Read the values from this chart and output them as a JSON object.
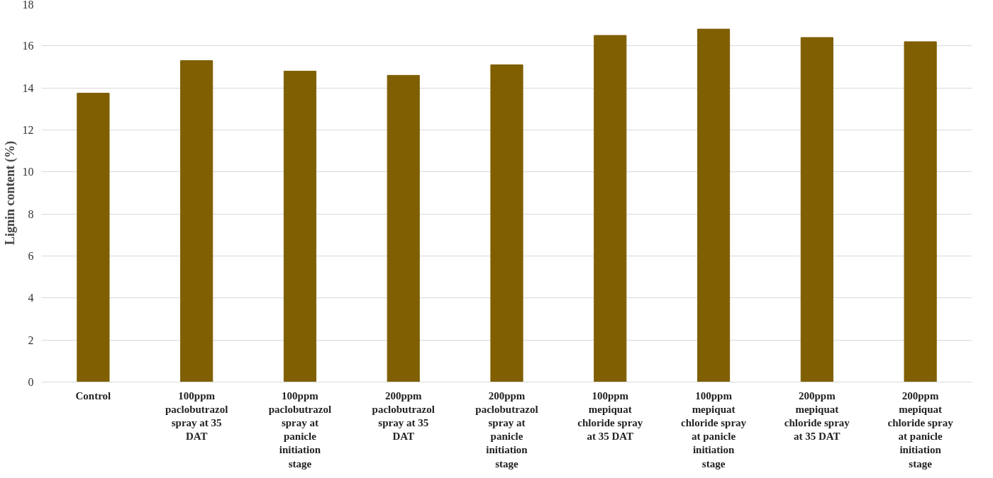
{
  "chart_data": {
    "type": "bar",
    "ylabel": "Lignin content (%)",
    "categories": [
      "Control",
      "100ppm paclobutrazol spray at 35 DAT",
      "100ppm paclobutrazol spray at panicle initiation stage",
      "200ppm paclobutrazol spray at 35 DAT",
      "200ppm paclobutrazol spray at panicle initiation stage",
      "100ppm mepiquat chloride spray at 35 DAT",
      "100ppm mepiquat chloride spray at panicle initiation stage",
      "200ppm mepiquat chloride spray at 35 DAT",
      "200ppm mepiquat chloride spray at panicle initiation stage"
    ],
    "values": [
      13.75,
      15.3,
      14.8,
      14.6,
      15.1,
      16.5,
      16.8,
      16.4,
      16.2
    ],
    "color": "#7f5f00",
    "ylim": [
      0,
      18
    ],
    "yticks": [
      0,
      2,
      4,
      6,
      8,
      10,
      12,
      14,
      16,
      18
    ],
    "grid": "y"
  }
}
